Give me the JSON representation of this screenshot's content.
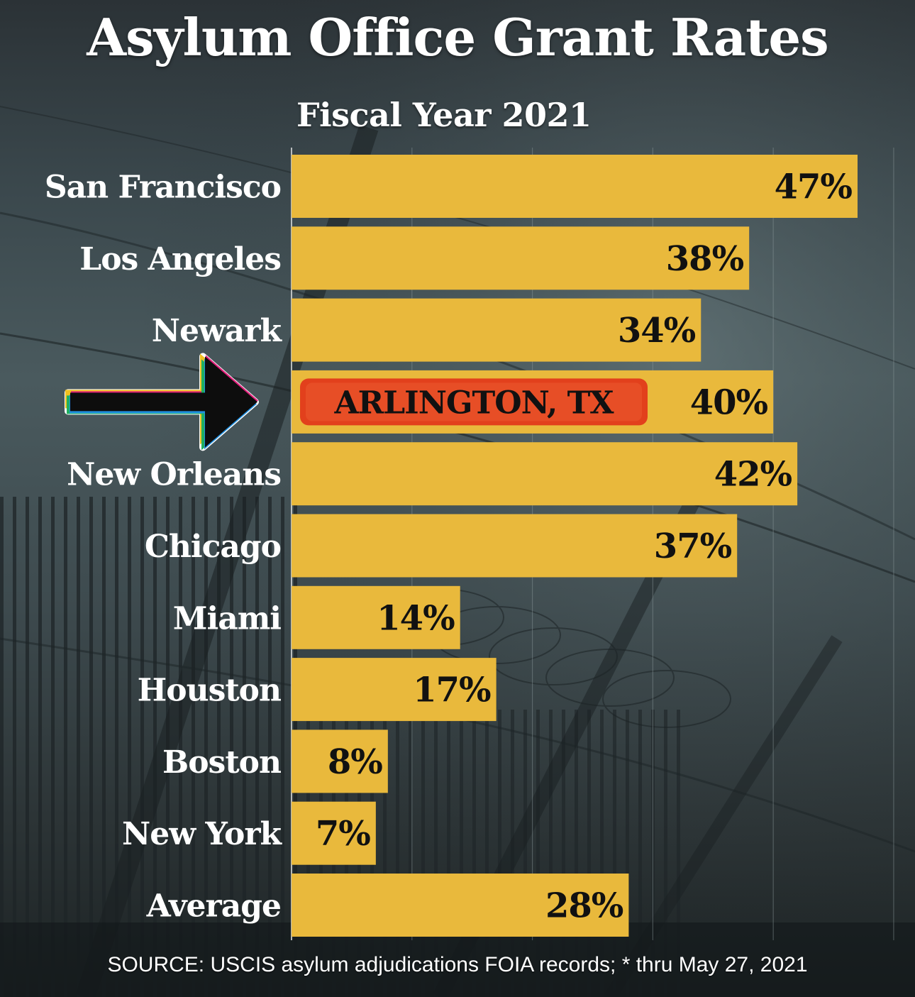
{
  "title": "Asylum Office Grant Rates",
  "subtitle": "Fiscal Year 2021",
  "source": "SOURCE: USCIS asylum adjudications FOIA records; * thru May 27, 2021",
  "callout": {
    "label": "ARLINGTON, TX",
    "label_fill": "#e2401c",
    "arrow_icon": "right-arrow-icon"
  },
  "colors": {
    "bar": "#e9b93c",
    "background": "#3a474c",
    "text": "#ffffff",
    "value_text": "#111111"
  },
  "chart_data": {
    "type": "bar",
    "orientation": "horizontal",
    "title": "Asylum Office Grant Rates",
    "subtitle": "Fiscal Year 2021",
    "categories": [
      "San Francisco",
      "Los Angeles",
      "Newark",
      "",
      "New Orleans",
      "Chicago",
      "Miami",
      "Houston",
      "Boston",
      "New York",
      "Average"
    ],
    "values": [
      47,
      38,
      34,
      40,
      42,
      37,
      14,
      17,
      8,
      7,
      28
    ],
    "value_labels": [
      "47%",
      "38%",
      "34%",
      "40%",
      "42%",
      "37%",
      "14%",
      "17%",
      "8%",
      "7%",
      "28%"
    ],
    "unit": "%",
    "xlim": [
      0,
      50
    ],
    "grid": true,
    "legend": "none"
  }
}
